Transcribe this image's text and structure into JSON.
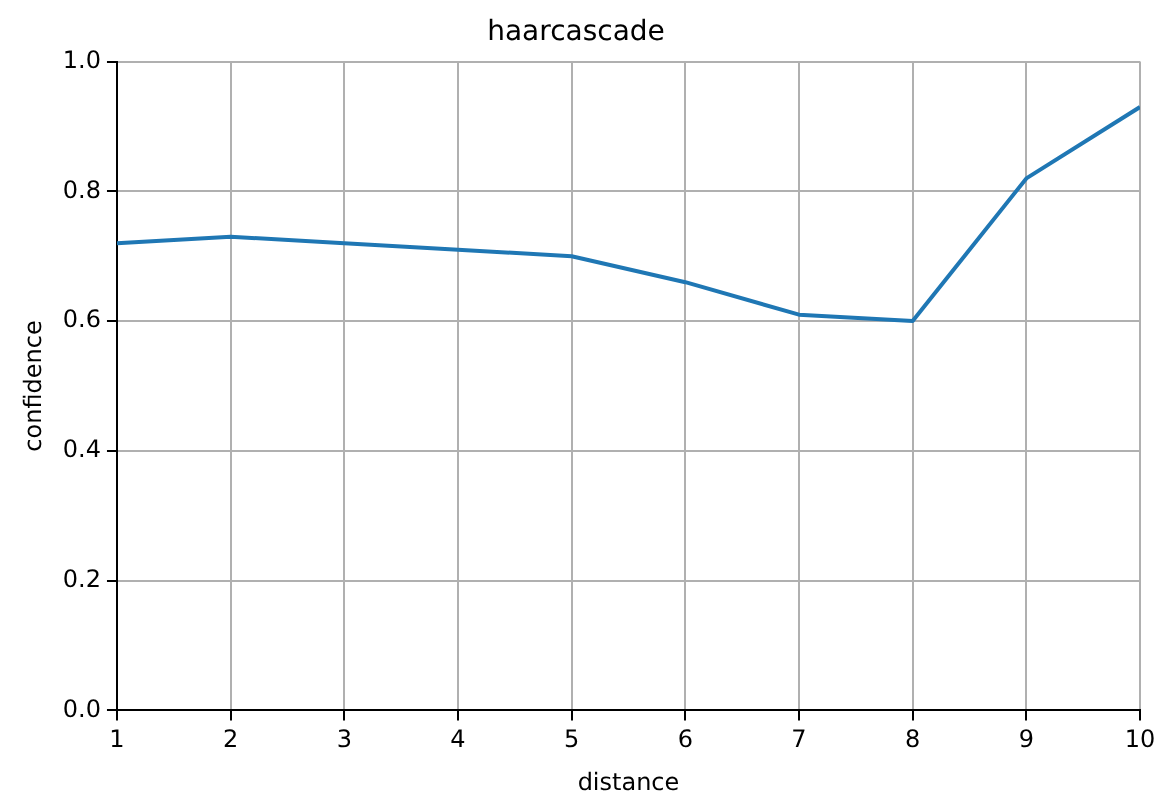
{
  "chart_data": {
    "type": "line",
    "title": "haarcascade",
    "xlabel": "distance",
    "ylabel": "confidence",
    "x": [
      1,
      2,
      3,
      4,
      5,
      6,
      7,
      8,
      9,
      10
    ],
    "series": [
      {
        "color": "#1f77b4",
        "values": [
          0.72,
          0.73,
          0.72,
          0.71,
          0.7,
          0.66,
          0.61,
          0.6,
          0.82,
          0.93
        ]
      }
    ],
    "xlim": [
      1,
      10
    ],
    "xticks": [
      1,
      2,
      3,
      4,
      5,
      6,
      7,
      8,
      9,
      10
    ],
    "ylim": [
      0,
      1
    ],
    "yticks": [
      {
        "value": 0,
        "label": "0.0"
      },
      0.2,
      0.4,
      0.6,
      0.8,
      {
        "value": 1,
        "label": "1.0"
      }
    ],
    "grid": true,
    "legend": false,
    "marker": "none",
    "line_style": "solid"
  }
}
